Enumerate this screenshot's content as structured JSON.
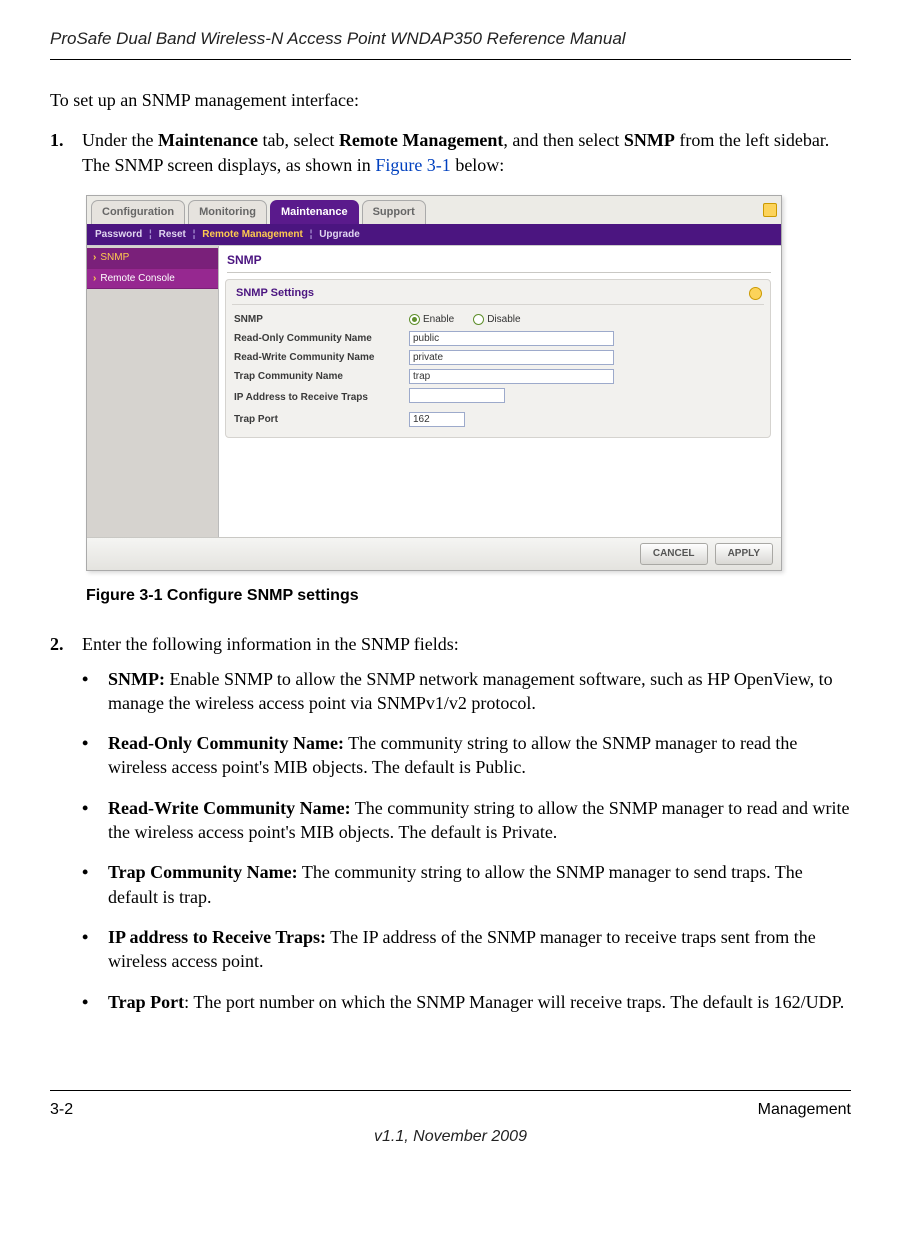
{
  "doc_header": "ProSafe Dual Band Wireless-N Access Point WNDAP350 Reference Manual",
  "intro": "To set up an SNMP management interface:",
  "step1_num": "1.",
  "step1_text_pre": "Under the ",
  "step1_b1": "Maintenance",
  "step1_text_mid1": " tab, select ",
  "step1_b2": "Remote Management",
  "step1_text_mid2": ", and then select ",
  "step1_b3": "SNMP",
  "step1_text_mid3": " from the left sidebar. The SNMP screen displays, as shown in ",
  "step1_link": "Figure 3-1",
  "step1_text_end": " below:",
  "ui": {
    "tabs": {
      "configuration": "Configuration",
      "monitoring": "Monitoring",
      "maintenance": "Maintenance",
      "support": "Support"
    },
    "subnav": {
      "password": "Password",
      "reset": "Reset",
      "remote": "Remote Management",
      "upgrade": "Upgrade"
    },
    "sidebar": {
      "snmp": "SNMP",
      "remote_console": "Remote Console"
    },
    "main_title": "SNMP",
    "panel_title": "SNMP Settings",
    "rows": {
      "snmp_label": "SNMP",
      "enable": "Enable",
      "disable": "Disable",
      "ro_label": "Read-Only Community Name",
      "ro_value": "public",
      "rw_label": "Read-Write Community Name",
      "rw_value": "private",
      "trap_label": "Trap Community Name",
      "trap_value": "trap",
      "ip_label": "IP Address to Receive Traps",
      "ip_value": "",
      "port_label": "Trap Port",
      "port_value": "162"
    },
    "buttons": {
      "cancel": "CANCEL",
      "apply": "APPLY"
    }
  },
  "fig_caption": "Figure 3-1  Configure SNMP settings",
  "step2_num": "2.",
  "step2_text": "Enter the following information in the SNMP fields:",
  "bullets": {
    "b1_label": "SNMP:",
    "b1_text": " Enable SNMP to allow the SNMP network management software, such as HP OpenView, to manage the wireless access point via SNMPv1/v2 protocol.",
    "b2_label": "Read-Only Community Name:",
    "b2_text": " The community string to allow the SNMP manager to read the wireless access point's MIB objects. The default is Public.",
    "b3_label": "Read-Write Community Name:",
    "b3_text": " The community string to allow the SNMP manager to read and write the wireless access point's MIB objects. The default is Private.",
    "b4_label": "Trap Community Name:",
    "b4_text": " The community string to allow the SNMP manager to send traps. The default is trap.",
    "b5_label": "IP address to Receive Traps:",
    "b5_text": " The IP address of the SNMP manager to receive traps sent from the wireless access point.",
    "b6_label": "Trap Port",
    "b6_text": ": The port number on which the SNMP Manager will receive traps. The default is 162/UDP."
  },
  "footer": {
    "page": "3-2",
    "section": "Management",
    "version": "v1.1, November 2009"
  }
}
